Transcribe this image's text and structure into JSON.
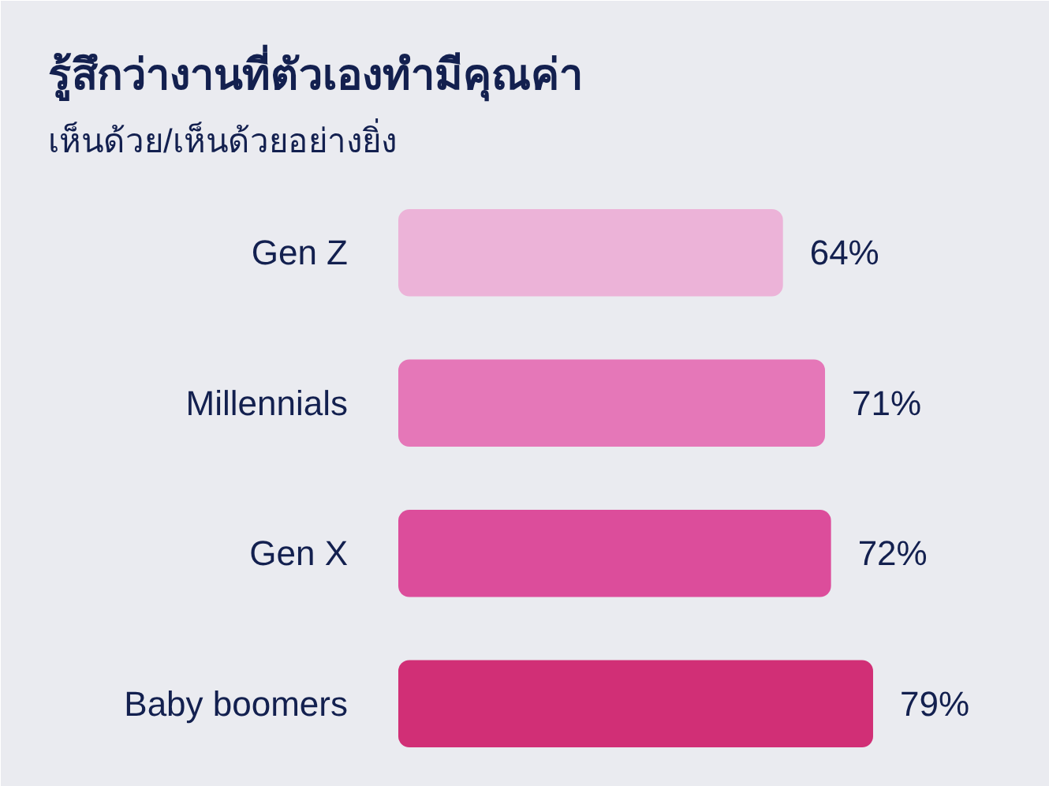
{
  "chart_data": {
    "type": "bar",
    "orientation": "horizontal",
    "title": "รู้สึกว่างานที่ตัวเองทำมีคุณค่า",
    "subtitle": "เห็นด้วย/เห็นด้วยอย่างยิ่ง",
    "categories": [
      "Gen Z",
      "Millennials",
      "Gen X",
      "Baby boomers"
    ],
    "values": [
      64,
      71,
      72,
      79
    ],
    "colors": [
      "#ecb3d8",
      "#e577b8",
      "#dc4d9b",
      "#d12f76"
    ],
    "value_labels": [
      "64%",
      "71%",
      "72%",
      "79%"
    ],
    "xlim": [
      0,
      100
    ],
    "tick_labels": "y",
    "grid": false
  }
}
